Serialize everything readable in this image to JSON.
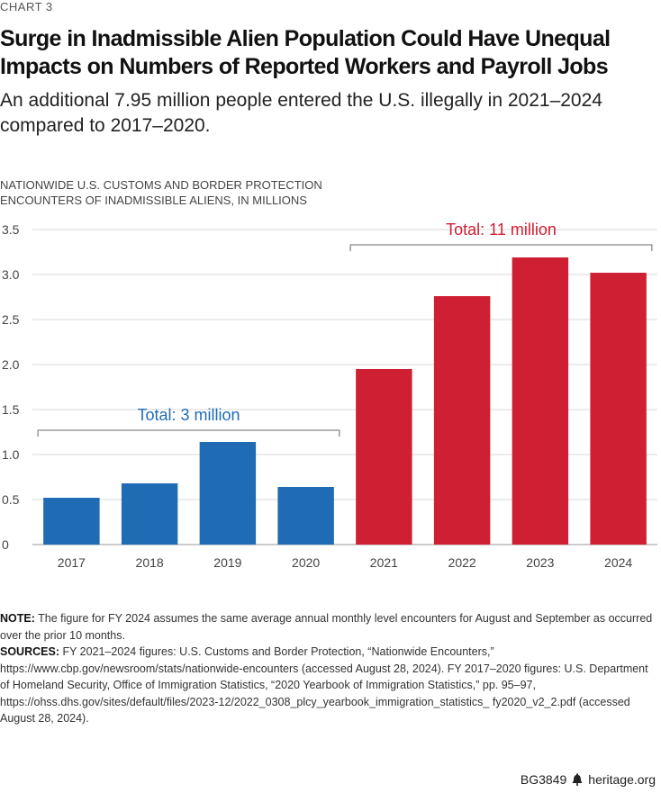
{
  "chart_label": "CHART 3",
  "title_line1": "Surge in Inadmissible Alien Population Could Have Unequal",
  "title_line2": "Impacts on Numbers of Reported Workers and Payroll Jobs",
  "subtitle": "An additional 7.95 million people entered the U.S. illegally in 2021–2024 compared to 2017–2020.",
  "axis_title_line1": "NATIONWIDE U.S. CUSTOMS AND BORDER PROTECTION",
  "axis_title_line2": "ENCOUNTERS OF INADMISSIBLE ALIENS, IN MILLIONS",
  "colors": {
    "blue": "#1f6cb5",
    "red": "#cf1f33",
    "grid": "#d9d9d9",
    "bracket": "#888888"
  },
  "chart_data": {
    "type": "bar",
    "categories": [
      "2017",
      "2018",
      "2019",
      "2020",
      "2021",
      "2022",
      "2023",
      "2024"
    ],
    "values": [
      0.52,
      0.68,
      1.14,
      0.64,
      1.95,
      2.76,
      3.19,
      3.02
    ],
    "bar_colors": [
      "blue",
      "blue",
      "blue",
      "blue",
      "red",
      "red",
      "red",
      "red"
    ],
    "ylim": [
      0,
      3.5
    ],
    "yticks": [
      "3.5",
      "3.0",
      "2.5",
      "2.0",
      "1.5",
      "1.0",
      "0.5",
      "0"
    ],
    "ytick_values": [
      3.5,
      3.0,
      2.5,
      2.0,
      1.5,
      1.0,
      0.5,
      0
    ],
    "grid": true,
    "annotations": [
      {
        "text": "Total: 3 million",
        "from": 0,
        "to": 3,
        "level": 1.27,
        "color": "blue"
      },
      {
        "text": "Total: 11 million",
        "from": 4,
        "to": 7,
        "level": 3.33,
        "color": "red"
      }
    ]
  },
  "note_label": "NOTE:",
  "note_text": " The figure for FY 2024 assumes the same average annual monthly level encounters for August and September as occurred over the prior 10 months.",
  "sources_label": "SOURCES:",
  "sources_text": " FY 2021–2024 figures: U.S. Customs and Border Protection, “Nationwide Encounters,” https://www.cbp.gov/newsroom/stats/nationwide-encounters (accessed August 28, 2024). FY 2017–2020 figures: U.S. Department of Homeland Security, Office of Immigration Statistics, “2020 Yearbook of Immigration Statistics,” pp. 95–97, https://ohss.dhs.gov/sites/default/files/2023-12/2022_0308_plcy_yearbook_immigration_statistics_ fy2020_v2_2.pdf (accessed August 28, 2024).",
  "footer": {
    "code": "BG3849",
    "site": "heritage.org",
    "icon": "liberty-bell-icon"
  }
}
